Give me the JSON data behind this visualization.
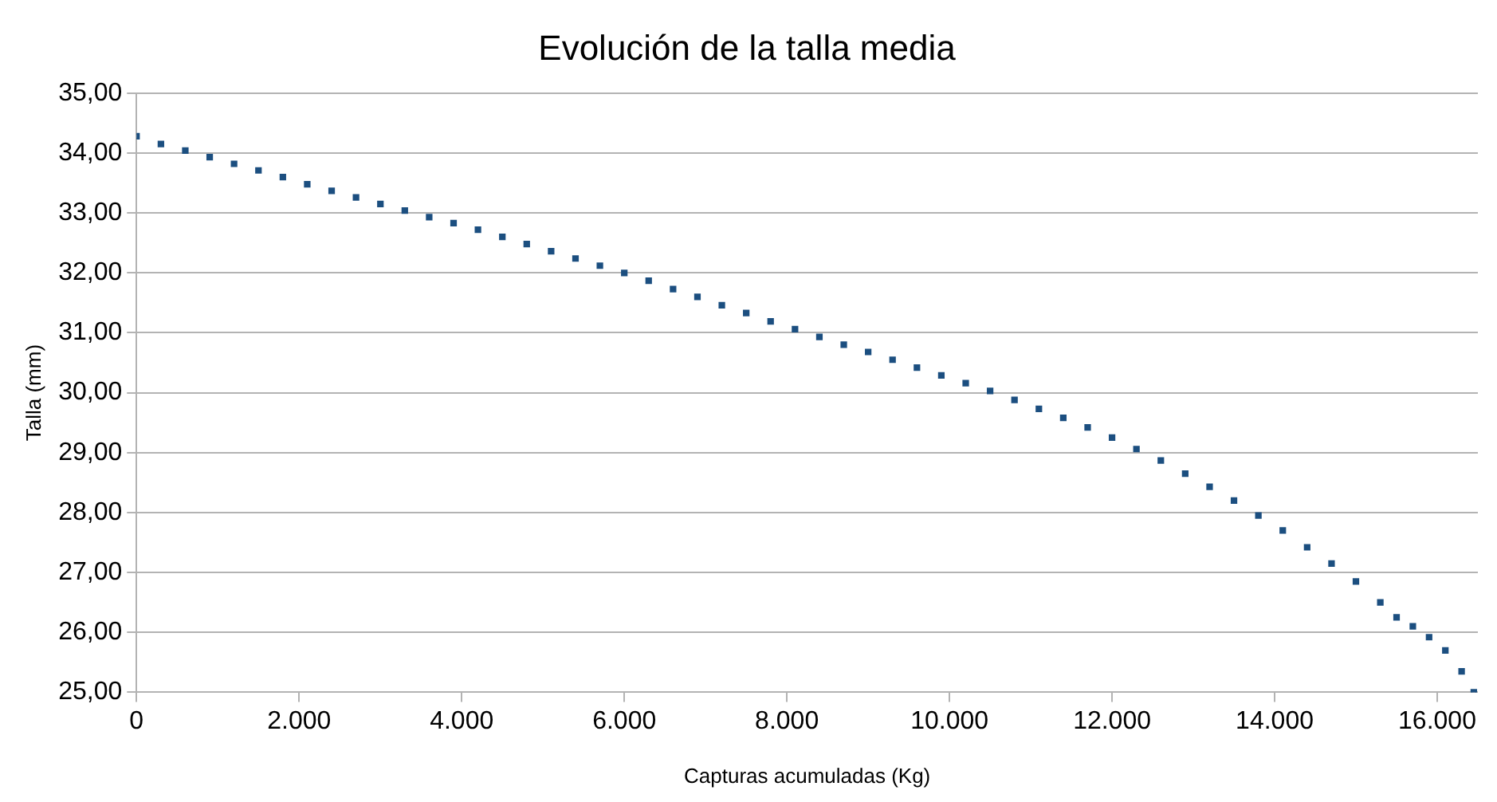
{
  "chart_data": {
    "type": "scatter",
    "title": "Evolución de la talla media",
    "xlabel": "Capturas acumuladas (Kg)",
    "ylabel": "Talla (mm)",
    "x": [
      0,
      300,
      600,
      900,
      1200,
      1500,
      1800,
      2100,
      2400,
      2700,
      3000,
      3300,
      3600,
      3900,
      4200,
      4500,
      4800,
      5100,
      5400,
      5700,
      6000,
      6300,
      6600,
      6900,
      7200,
      7500,
      7800,
      8100,
      8400,
      8700,
      9000,
      9300,
      9600,
      9900,
      10200,
      10500,
      10800,
      11100,
      11400,
      11700,
      12000,
      12300,
      12600,
      12900,
      13200,
      13500,
      13800,
      14100,
      14400,
      14700,
      15000,
      15300,
      15500,
      15700,
      15900,
      16100,
      16300,
      16450
    ],
    "series": [
      {
        "color": "#1c4f80",
        "values": [
          34.28,
          34.15,
          34.04,
          33.93,
          33.82,
          33.71,
          33.6,
          33.48,
          33.37,
          33.26,
          33.15,
          33.04,
          32.93,
          32.83,
          32.72,
          32.6,
          32.48,
          32.36,
          32.24,
          32.12,
          32.0,
          31.87,
          31.73,
          31.6,
          31.46,
          31.33,
          31.19,
          31.06,
          30.93,
          30.8,
          30.68,
          30.55,
          30.42,
          30.29,
          30.16,
          30.03,
          29.88,
          29.73,
          29.58,
          29.42,
          29.25,
          29.06,
          28.87,
          28.65,
          28.43,
          28.2,
          27.95,
          27.7,
          27.42,
          27.15,
          26.85,
          26.5,
          26.25,
          26.1,
          25.92,
          25.7,
          25.35,
          25.0
        ]
      }
    ],
    "xlim": [
      0,
      16500
    ],
    "xticks": [
      {
        "value": 0,
        "label": "0"
      },
      {
        "value": 2000,
        "label": "2.000"
      },
      {
        "value": 4000,
        "label": "4.000"
      },
      {
        "value": 6000,
        "label": "6.000"
      },
      {
        "value": 8000,
        "label": "8.000"
      },
      {
        "value": 10000,
        "label": "10.000"
      },
      {
        "value": 12000,
        "label": "12.000"
      },
      {
        "value": 14000,
        "label": "14.000"
      },
      {
        "value": 16000,
        "label": "16.000"
      }
    ],
    "ylim": [
      25,
      35
    ],
    "yticks": [
      {
        "value": 25,
        "label": "25,00"
      },
      {
        "value": 26,
        "label": "26,00"
      },
      {
        "value": 27,
        "label": "27,00"
      },
      {
        "value": 28,
        "label": "28,00"
      },
      {
        "value": 29,
        "label": "29,00"
      },
      {
        "value": 30,
        "label": "30,00"
      },
      {
        "value": 31,
        "label": "31,00"
      },
      {
        "value": 32,
        "label": "32,00"
      },
      {
        "value": 33,
        "label": "33,00"
      },
      {
        "value": 34,
        "label": "34,00"
      },
      {
        "value": 35,
        "label": "35,00"
      }
    ],
    "grid": "y",
    "legend": false,
    "marker": "square"
  }
}
